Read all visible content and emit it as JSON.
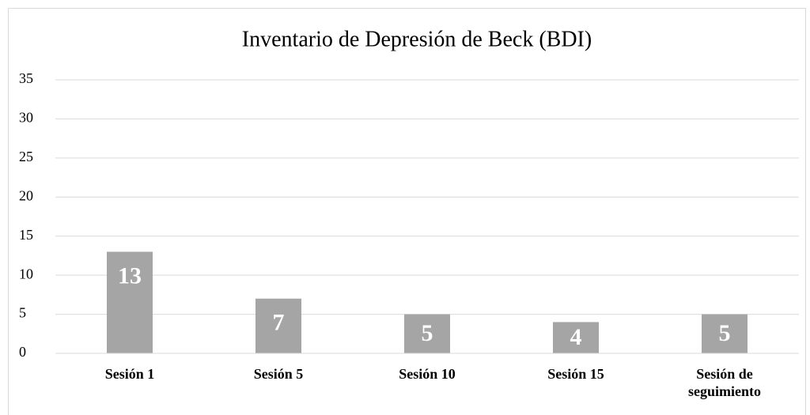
{
  "chart_data": {
    "type": "bar",
    "title": "Inventario de Depresión de Beck (BDI)",
    "categories": [
      "Sesión 1",
      "Sesión 5",
      "Sesión 10",
      "Sesión 15",
      "Sesión de seguimiento"
    ],
    "values": [
      13,
      7,
      5,
      4,
      5
    ],
    "color": "#a5a5a5",
    "ylim": [
      0,
      35
    ],
    "yticks": [
      0,
      5,
      10,
      15,
      20,
      25,
      30,
      35
    ],
    "grid": true
  }
}
